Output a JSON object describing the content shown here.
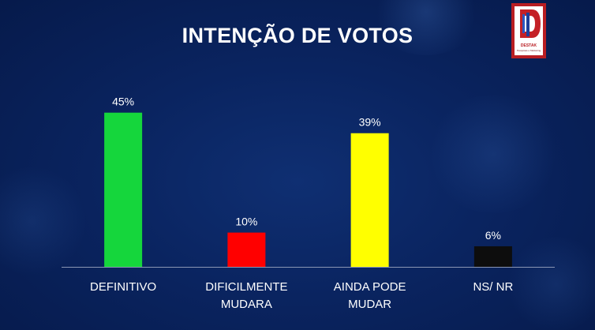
{
  "chart_data": {
    "type": "bar",
    "title": "INTENÇÃO DE VOTOS",
    "categories": [
      [
        "DEFINITIVO"
      ],
      [
        "DIFICILMENTE",
        "MUDARA"
      ],
      [
        "AINDA PODE",
        "MUDAR"
      ],
      [
        "NS/ NR"
      ]
    ],
    "values": [
      45,
      10,
      39,
      6
    ],
    "value_labels": [
      "45%",
      "10%",
      "39%",
      "6%"
    ],
    "bar_colors": [
      "#15d63c",
      "#ff0000",
      "#ffff00",
      "#0d0d0d"
    ],
    "ylim": [
      0,
      50
    ],
    "grid": false,
    "legend": false
  },
  "logo": {
    "name": "DESTAK",
    "tagline": "Pesquisas e Marketing"
  }
}
